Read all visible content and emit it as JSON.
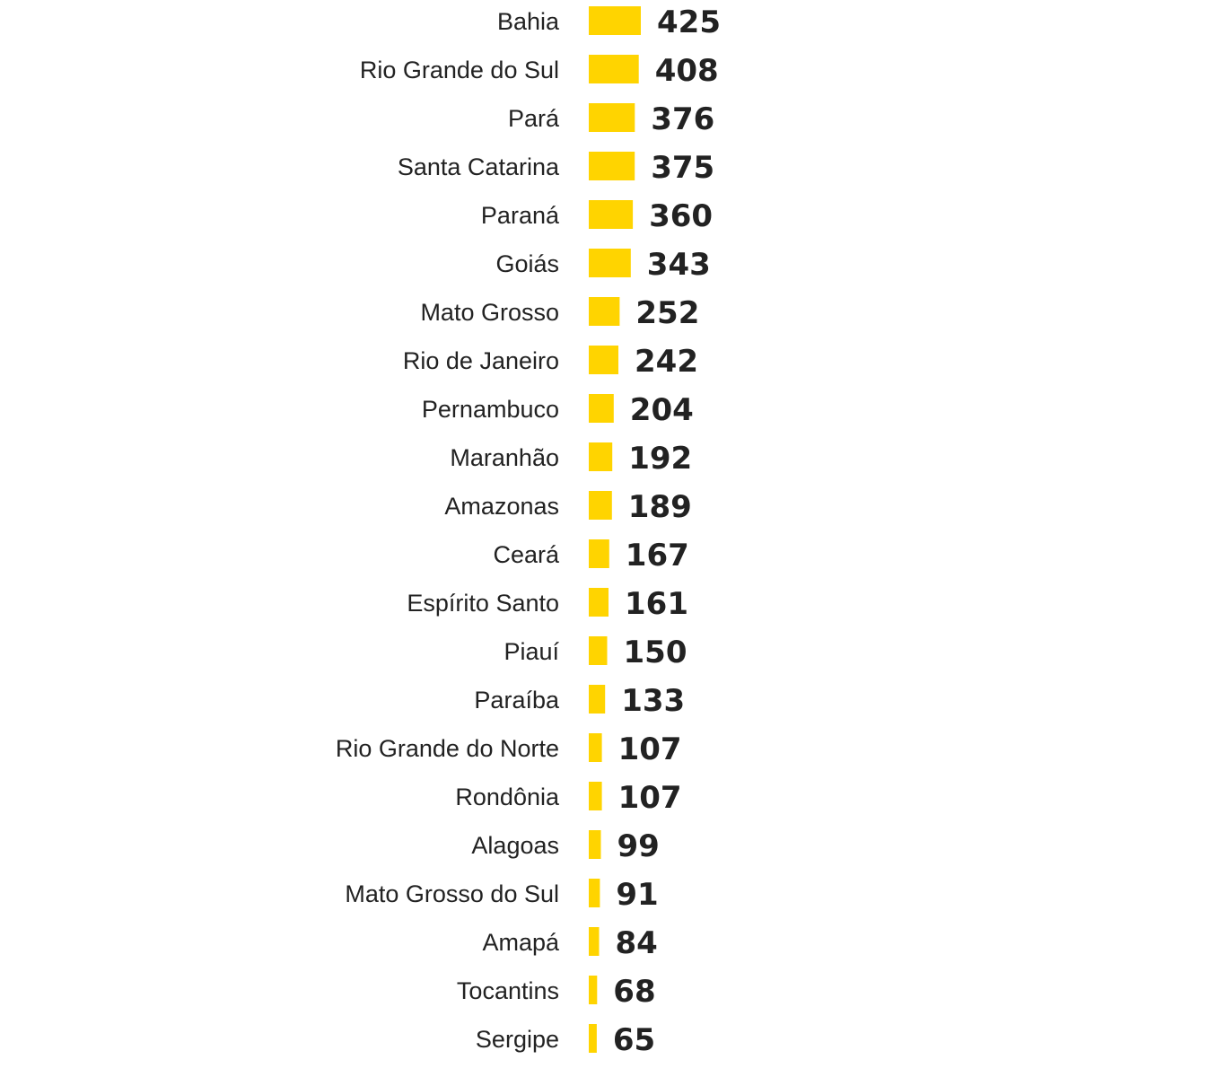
{
  "chart_data": {
    "type": "bar",
    "orientation": "horizontal",
    "categories": [
      "Bahia",
      "Rio Grande do Sul",
      "Pará",
      "Santa Catarina",
      "Paraná",
      "Goiás",
      "Mato Grosso",
      "Rio de Janeiro",
      "Pernambuco",
      "Maranhão",
      "Amazonas",
      "Ceará",
      "Espírito Santo",
      "Piauí",
      "Paraíba",
      "Rio Grande do Norte",
      "Rondônia",
      "Alagoas",
      "Mato Grosso do Sul",
      "Amapá",
      "Tocantins",
      "Sergipe"
    ],
    "values": [
      425,
      408,
      376,
      375,
      360,
      343,
      252,
      242,
      204,
      192,
      189,
      167,
      161,
      150,
      133,
      107,
      107,
      99,
      91,
      84,
      68,
      65
    ],
    "bar_color": "#FFD400",
    "text_color": "#222222",
    "background": "#FFFFFF",
    "grid": false,
    "legend": "none",
    "data_labels": true,
    "title": "",
    "xlabel": "",
    "ylabel": ""
  }
}
